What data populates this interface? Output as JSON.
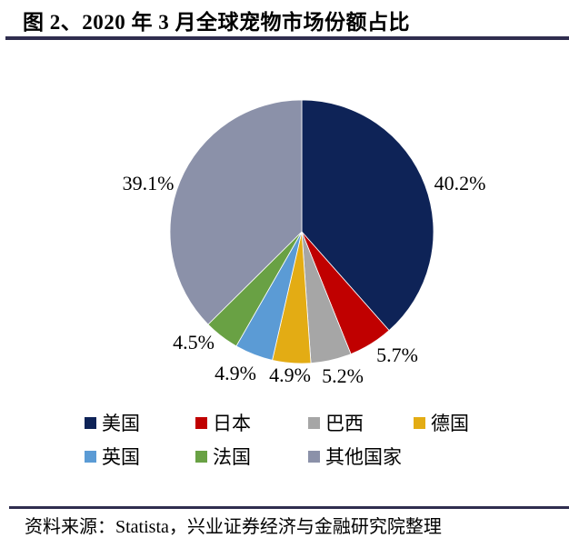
{
  "header": {
    "title": "图 2、2020 年 3 月全球宠物市场份额占比"
  },
  "chart_data": {
    "type": "pie",
    "title": "2020年3月全球宠物市场份额占比",
    "categories": [
      "美国",
      "日本",
      "巴西",
      "德国",
      "英国",
      "法国",
      "其他国家"
    ],
    "values": [
      40.2,
      5.7,
      5.2,
      4.9,
      4.9,
      4.5,
      39.1
    ],
    "labels": [
      "40.2%",
      "5.7%",
      "5.2%",
      "4.9%",
      "4.9%",
      "4.5%",
      "39.1%"
    ],
    "unit": "%",
    "keys": [
      "usa",
      "japan",
      "brazil",
      "germany",
      "uk",
      "france",
      "others"
    ],
    "colors": [
      "#0e2357",
      "#c00000",
      "#a6a6a6",
      "#e3ac14",
      "#5b9bd5",
      "#69a144",
      "#8b91a9"
    ],
    "start_angle_deg": 0,
    "direction": "clockwise",
    "legend_position": "bottom",
    "accent_rule_color": "#2f2d4f"
  },
  "footer": {
    "source": "资料来源：Statista，兴业证券经济与金融研究院整理"
  }
}
